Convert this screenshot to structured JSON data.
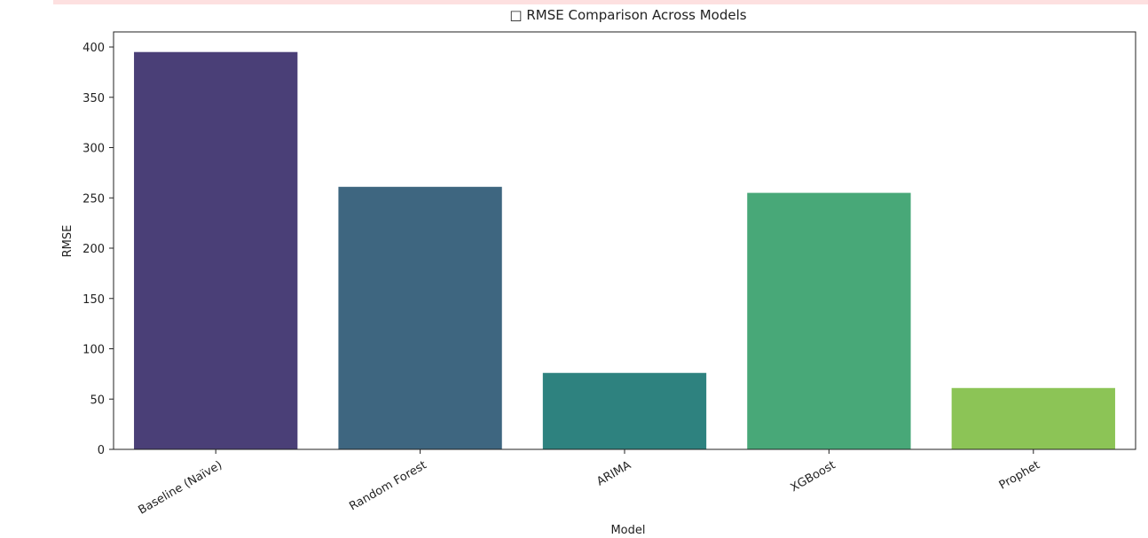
{
  "chart_data": {
    "type": "bar",
    "title": "□ RMSE Comparison Across Models",
    "x_label": "Model",
    "y_label": "RMSE",
    "categories": [
      "Baseline (Naïve)",
      "Random Forest",
      "ARIMA",
      "XGBoost",
      "Prophet"
    ],
    "values": [
      395,
      261,
      76,
      255,
      61
    ],
    "colors": [
      "#4a3f77",
      "#3e6680",
      "#2e827f",
      "#48a878",
      "#8cc456"
    ],
    "ylim": [
      0,
      415
    ],
    "yticks": [
      0,
      50,
      100,
      150,
      200,
      250,
      300,
      350,
      400
    ],
    "grid": false
  }
}
